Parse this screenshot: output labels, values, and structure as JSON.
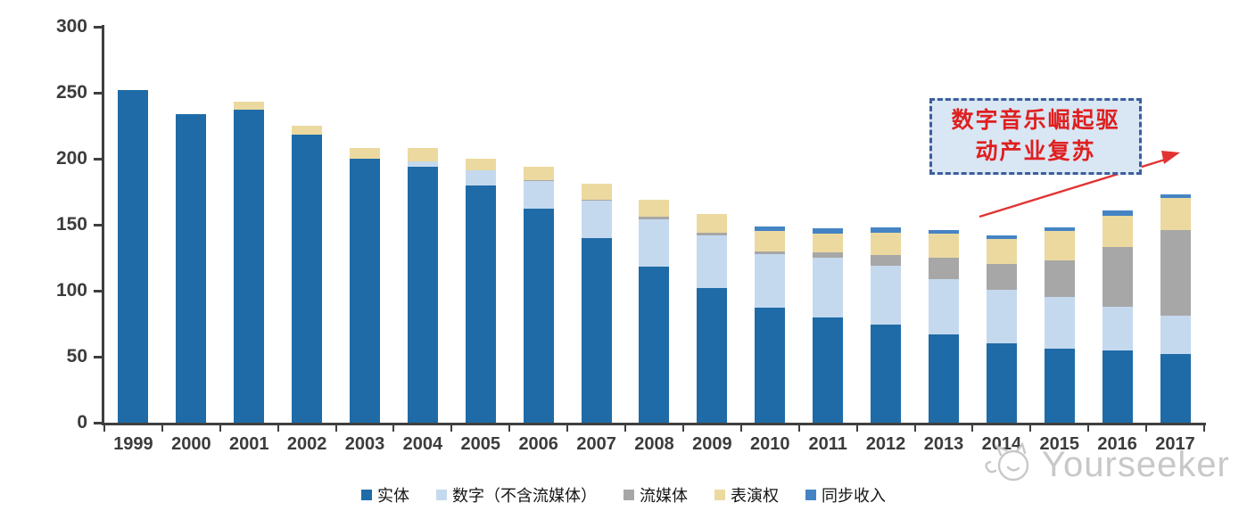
{
  "chart_data": {
    "type": "bar",
    "stacked": true,
    "title": "",
    "xlabel": "",
    "ylabel": "",
    "categories": [
      "1999",
      "2000",
      "2001",
      "2002",
      "2003",
      "2004",
      "2005",
      "2006",
      "2007",
      "2008",
      "2009",
      "2010",
      "2011",
      "2012",
      "2013",
      "2014",
      "2015",
      "2016",
      "2017"
    ],
    "series": [
      {
        "name": "实体",
        "color": "#1e6ba7",
        "values": [
          252,
          234,
          237,
          218,
          200,
          194,
          180,
          162,
          140,
          118,
          102,
          87,
          80,
          74,
          67,
          60,
          56,
          55,
          52
        ]
      },
      {
        "name": "数字（不含流媒体）",
        "color": "#c5d9ee",
        "values": [
          0,
          0,
          0,
          0,
          0,
          4,
          11,
          21,
          28,
          36,
          40,
          41,
          45,
          45,
          42,
          41,
          39,
          33,
          29
        ]
      },
      {
        "name": "流媒体",
        "color": "#a7a7a7",
        "values": [
          0,
          0,
          0,
          0,
          0,
          0,
          0,
          1,
          1,
          2,
          2,
          2,
          4,
          8,
          16,
          19,
          28,
          45,
          65
        ]
      },
      {
        "name": "表演权",
        "color": "#ebd99f",
        "values": [
          0,
          0,
          6,
          7,
          8,
          10,
          9,
          10,
          12,
          13,
          14,
          15,
          14,
          17,
          18,
          19,
          22,
          24,
          24
        ]
      },
      {
        "name": "同步收入",
        "color": "#4584c4",
        "values": [
          0,
          0,
          0,
          0,
          0,
          0,
          0,
          0,
          0,
          0,
          0,
          4,
          4,
          4,
          3,
          3,
          3,
          4,
          3
        ]
      }
    ],
    "ylim": [
      0,
      300
    ],
    "yticks": [
      0,
      50,
      100,
      150,
      200,
      250,
      300
    ],
    "grid": false,
    "legend_position": "bottom"
  },
  "annotation": {
    "lines": [
      "数字音乐崛起驱",
      "动产业复苏"
    ],
    "border_color": "#3d5e9c",
    "fill_color": "#d9e6f4",
    "text_color": "#e01f1f",
    "arrow_color": "#e23333"
  },
  "watermark": {
    "text": "Yourseeker"
  },
  "axis_color": "#3f3f3f"
}
